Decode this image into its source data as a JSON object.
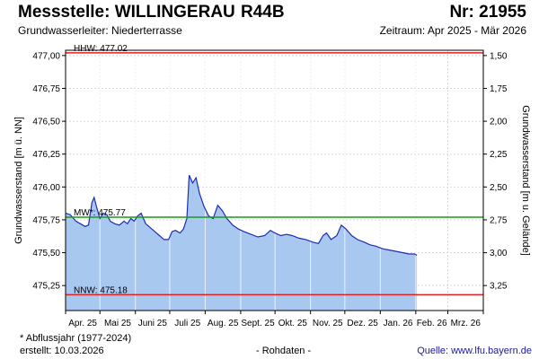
{
  "header": {
    "title": "Messstelle: WILLINGERAU",
    "code": "R44B",
    "number": "Nr: 21955",
    "aquifer": "Grundwasserleiter:   Niederterrasse",
    "period": "Zeitraum: Apr 2025 - Mär 2026"
  },
  "footer": {
    "footnote": "* Abflussjahr (1977-2024)",
    "created": "erstellt:  10.03.2026",
    "raw": "- Rohdaten -",
    "source": "Quelle: www.lfu.bayern.de"
  },
  "colors": {
    "fill": "#a9c8f0",
    "line": "#1c2db5",
    "hhw": "#e02020",
    "nnw": "#e02020",
    "mw": "#1a9a1a",
    "grid": "#d8d8d8"
  },
  "chart_data": {
    "type": "area",
    "ylabel": "Grundwasserstand [m ü. NN]",
    "ylabel_right": "Grundwasserstand [m u. Gelände]",
    "ylim": [
      475.06,
      477.04
    ],
    "yticks": [
      "477,00",
      "476,75",
      "476,50",
      "476,25",
      "476,00",
      "475,75",
      "475,50",
      "475,25"
    ],
    "yticks_right": [
      "1,50",
      "1,75",
      "2,00",
      "2,25",
      "2,50",
      "2,75",
      "3,00",
      "3,25"
    ],
    "x_categories": [
      "Apr. 25",
      "Mai 25",
      "Juni 25",
      "Juli 25",
      "Aug. 25",
      "Sept. 25",
      "Okt. 25",
      "Nov. 25",
      "Dez. 25",
      "Jan. 26",
      "Feb. 26",
      "Mrz. 26"
    ],
    "reference_lines": [
      {
        "label": "HHW: 477.02",
        "value": 477.02
      },
      {
        "label": "MW*: 475.77",
        "value": 475.77
      },
      {
        "label": "NNW: 475.18",
        "value": 475.18
      }
    ],
    "series": [
      {
        "values": [
          [
            "2025-04-01",
            475.8
          ],
          [
            "2025-04-05",
            475.79
          ],
          [
            "2025-04-10",
            475.74
          ],
          [
            "2025-04-14",
            475.72
          ],
          [
            "2025-04-18",
            475.7
          ],
          [
            "2025-04-21",
            475.71
          ],
          [
            "2025-04-24",
            475.88
          ],
          [
            "2025-04-26",
            475.92
          ],
          [
            "2025-04-28",
            475.85
          ],
          [
            "2025-05-01",
            475.76
          ],
          [
            "2025-05-04",
            475.8
          ],
          [
            "2025-05-07",
            475.79
          ],
          [
            "2025-05-10",
            475.74
          ],
          [
            "2025-05-14",
            475.72
          ],
          [
            "2025-05-18",
            475.71
          ],
          [
            "2025-05-22",
            475.74
          ],
          [
            "2025-05-25",
            475.72
          ],
          [
            "2025-05-28",
            475.76
          ],
          [
            "2025-05-31",
            475.74
          ],
          [
            "2025-06-03",
            475.78
          ],
          [
            "2025-06-06",
            475.8
          ],
          [
            "2025-06-10",
            475.72
          ],
          [
            "2025-06-14",
            475.69
          ],
          [
            "2025-06-18",
            475.66
          ],
          [
            "2025-06-22",
            475.63
          ],
          [
            "2025-06-26",
            475.6
          ],
          [
            "2025-06-30",
            475.6
          ],
          [
            "2025-07-03",
            475.66
          ],
          [
            "2025-07-06",
            475.67
          ],
          [
            "2025-07-10",
            475.65
          ],
          [
            "2025-07-13",
            475.68
          ],
          [
            "2025-07-16",
            475.76
          ],
          [
            "2025-07-18",
            476.09
          ],
          [
            "2025-07-21",
            476.03
          ],
          [
            "2025-07-24",
            476.07
          ],
          [
            "2025-07-27",
            475.95
          ],
          [
            "2025-07-31",
            475.85
          ],
          [
            "2025-08-04",
            475.78
          ],
          [
            "2025-08-08",
            475.76
          ],
          [
            "2025-08-12",
            475.86
          ],
          [
            "2025-08-16",
            475.82
          ],
          [
            "2025-08-20",
            475.76
          ],
          [
            "2025-08-25",
            475.71
          ],
          [
            "2025-08-30",
            475.68
          ],
          [
            "2025-09-04",
            475.66
          ],
          [
            "2025-09-10",
            475.64
          ],
          [
            "2025-09-16",
            475.62
          ],
          [
            "2025-09-22",
            475.63
          ],
          [
            "2025-09-27",
            475.67
          ],
          [
            "2025-10-01",
            475.65
          ],
          [
            "2025-10-06",
            475.63
          ],
          [
            "2025-10-11",
            475.64
          ],
          [
            "2025-10-16",
            475.63
          ],
          [
            "2025-10-22",
            475.61
          ],
          [
            "2025-10-28",
            475.6
          ],
          [
            "2025-11-03",
            475.58
          ],
          [
            "2025-11-08",
            475.57
          ],
          [
            "2025-11-12",
            475.63
          ],
          [
            "2025-11-15",
            475.65
          ],
          [
            "2025-11-19",
            475.6
          ],
          [
            "2025-11-24",
            475.63
          ],
          [
            "2025-11-28",
            475.71
          ],
          [
            "2025-12-02",
            475.68
          ],
          [
            "2025-12-07",
            475.63
          ],
          [
            "2025-12-12",
            475.6
          ],
          [
            "2025-12-18",
            475.58
          ],
          [
            "2025-12-23",
            475.56
          ],
          [
            "2025-12-28",
            475.55
          ],
          [
            "2026-01-03",
            475.53
          ],
          [
            "2026-01-09",
            475.52
          ],
          [
            "2026-01-15",
            475.51
          ],
          [
            "2026-01-21",
            475.5
          ],
          [
            "2026-01-26",
            475.49
          ],
          [
            "2026-01-31",
            475.49
          ],
          [
            "2026-02-02",
            475.48
          ]
        ]
      }
    ]
  }
}
